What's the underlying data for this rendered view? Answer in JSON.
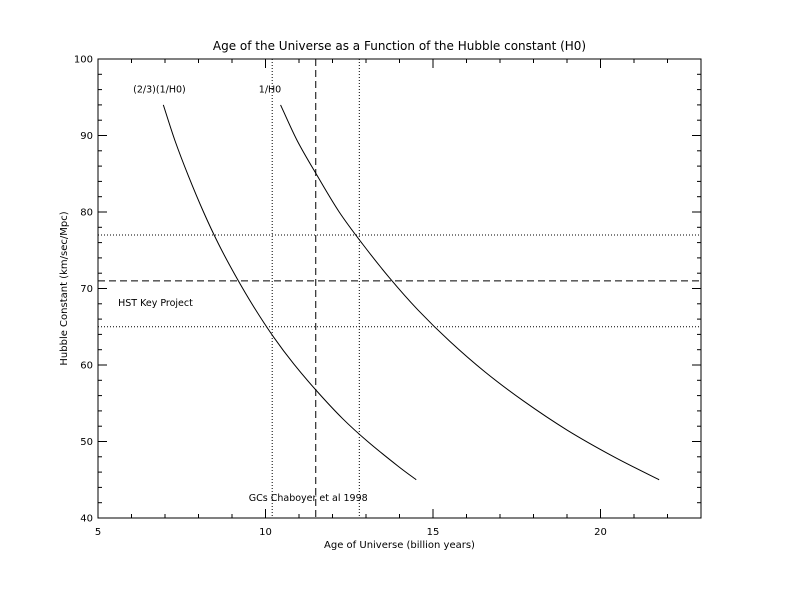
{
  "chart_data": {
    "type": "line",
    "title": "Age of the Universe as a Function of the Hubble constant (H0)",
    "xlabel": "Age of Universe (billion years)",
    "ylabel": "Hubble Constant (km/sec/Mpc)",
    "xlim": [
      5,
      23
    ],
    "ylim": [
      40,
      100
    ],
    "xticks": [
      5,
      10,
      15,
      20
    ],
    "yticks": [
      40,
      50,
      60,
      70,
      80,
      90,
      100
    ],
    "grid": false,
    "series": [
      {
        "name": "(2/3)(1/H0)",
        "style": "solid",
        "x": [
          6.95,
          7.3,
          7.7,
          8.15,
          8.6,
          9.1,
          9.65,
          10.25,
          10.85,
          11.55,
          12.3,
          13.05,
          13.95,
          14.5
        ],
        "y": [
          94,
          89.3,
          84.7,
          80,
          75.8,
          71.7,
          67.6,
          63.6,
          60.1,
          56.5,
          53,
          50,
          46.8,
          45
        ]
      },
      {
        "name": "1/H0",
        "style": "solid",
        "x": [
          10.45,
          10.95,
          11.55,
          12.2,
          12.9,
          13.7,
          14.55,
          15.5,
          16.55,
          17.7,
          19.0,
          20.4,
          21.75
        ],
        "y": [
          94,
          89.3,
          84.7,
          80,
          75.8,
          71.4,
          67.2,
          63.1,
          59.1,
          55.3,
          51.5,
          48.0,
          45
        ]
      }
    ],
    "reference_lines": [
      {
        "orientation": "horizontal",
        "value": 77,
        "style": "dotted"
      },
      {
        "orientation": "horizontal",
        "value": 71,
        "style": "dashed"
      },
      {
        "orientation": "horizontal",
        "value": 65,
        "style": "dotted"
      },
      {
        "orientation": "vertical",
        "value": 10.2,
        "style": "dotted"
      },
      {
        "orientation": "vertical",
        "value": 11.5,
        "style": "dashed"
      },
      {
        "orientation": "vertical",
        "value": 12.8,
        "style": "dotted"
      }
    ],
    "annotations": [
      {
        "text": "(2/3)(1/H0)",
        "x": 6.05,
        "y": 95.6
      },
      {
        "text": "1/H0",
        "x": 9.8,
        "y": 95.6
      },
      {
        "text": "HST Key Project",
        "x": 5.6,
        "y": 67.7
      },
      {
        "text": "GCs Chaboyer et al 1998",
        "x": 9.5,
        "y": 42.2
      }
    ]
  }
}
